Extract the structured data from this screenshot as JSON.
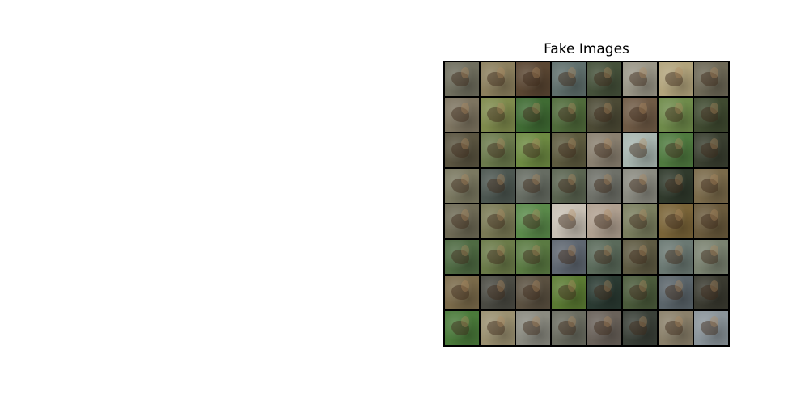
{
  "title": "Fake Images",
  "grid": {
    "rows": 8,
    "cols": 8,
    "tile_colors": [
      [
        "#6f6e5e",
        "#8b7f5d",
        "#5a4632",
        "#5f6f6c",
        "#45513a",
        "#9a9687",
        "#b2a47c",
        "#6d6856"
      ],
      [
        "#7d7460",
        "#7e8a4c",
        "#3f6b33",
        "#4f6a3a",
        "#4c4a35",
        "#6f5a45",
        "#6e8a4a",
        "#3f4a30"
      ],
      [
        "#5a5440",
        "#6b7a4c",
        "#6d8a42",
        "#5d5a3e",
        "#8a8070",
        "#a8b6b0",
        "#4f7a3f",
        "#3a3f30"
      ],
      [
        "#7a7860",
        "#4c5650",
        "#666c62",
        "#5a6450",
        "#6e7068",
        "#8a8a80",
        "#303a2c",
        "#7a6a4a"
      ],
      [
        "#6e6a55",
        "#7a7a55",
        "#5a8a4a",
        "#c8c0b4",
        "#b0a090",
        "#7a7e5e",
        "#7a6438",
        "#6a5a3c"
      ],
      [
        "#4e6a42",
        "#6a7a48",
        "#5a7a42",
        "#5e6670",
        "#5a6a5a",
        "#5e5a42",
        "#6a7872",
        "#7a8270"
      ],
      [
        "#7a6a4a",
        "#4a4a42",
        "#5a5040",
        "#5a7a32",
        "#2a3a32",
        "#4a5a3a",
        "#5a646a",
        "#3a3a30"
      ],
      [
        "#4a7a3a",
        "#9a9070",
        "#8a8a80",
        "#6a6c60",
        "#6a625a",
        "#3a4038",
        "#8a806a",
        "#8a949a"
      ]
    ]
  }
}
